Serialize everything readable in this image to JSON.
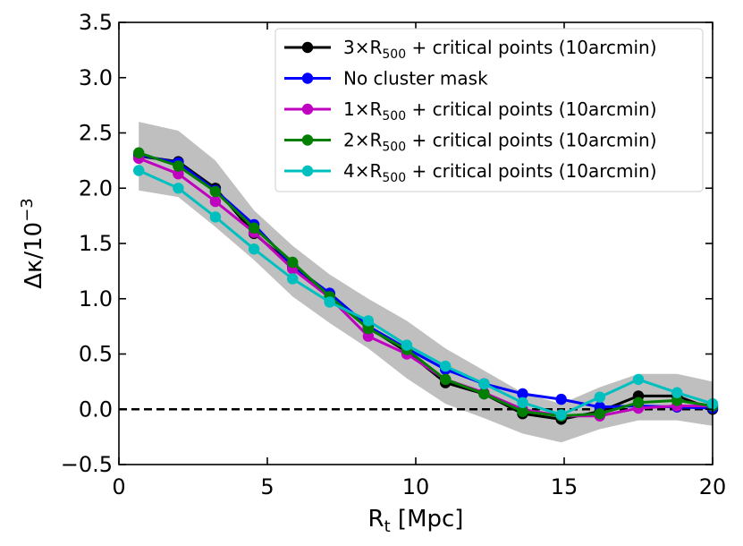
{
  "chart_data": {
    "type": "line",
    "title": "",
    "xlabel": "R",
    "xlabel_sub": "t",
    "xlabel_unit": " [Mpc]",
    "ylabel": "Δκ/10",
    "ylabel_sup": "−3",
    "xlim": [
      0,
      20
    ],
    "ylim": [
      -0.5,
      3.5
    ],
    "xticks": [
      0,
      5,
      10,
      15,
      20
    ],
    "xtick_labels": [
      "0",
      "5",
      "10",
      "15",
      "20"
    ],
    "yticks": [
      -0.5,
      0.0,
      0.5,
      1.0,
      1.5,
      2.0,
      2.5,
      3.0,
      3.5
    ],
    "ytick_labels": [
      "−0.5",
      "0.0",
      "0.5",
      "1.0",
      "1.5",
      "2.0",
      "2.5",
      "3.0",
      "3.5"
    ],
    "x": [
      0.67,
      2.0,
      3.25,
      4.55,
      5.85,
      7.1,
      8.4,
      9.7,
      11.0,
      12.3,
      13.6,
      14.9,
      16.2,
      17.5,
      18.8,
      20.0
    ],
    "reference_line": {
      "y": 0.0,
      "style": "dashed",
      "color": "#000000"
    },
    "band": {
      "color": "#bfbfbf",
      "upper": [
        2.6,
        2.52,
        2.25,
        1.8,
        1.48,
        1.22,
        1.0,
        0.8,
        0.55,
        0.35,
        0.15,
        0.05,
        0.2,
        0.32,
        0.32,
        0.25
      ],
      "lower": [
        1.98,
        1.92,
        1.65,
        1.35,
        1.02,
        0.78,
        0.55,
        0.28,
        0.05,
        -0.08,
        -0.22,
        -0.3,
        -0.18,
        -0.1,
        -0.1,
        -0.15
      ]
    },
    "series": [
      {
        "name": "3×R500 + critical points (10arcmin)",
        "color": "#000000",
        "values": [
          2.29,
          2.24,
          2.0,
          1.59,
          1.3,
          1.04,
          0.74,
          0.52,
          0.24,
          0.14,
          -0.04,
          -0.09,
          -0.02,
          0.12,
          0.12,
          0.0
        ]
      },
      {
        "name": "No cluster mask",
        "color": "#0000ff",
        "values": [
          2.3,
          2.23,
          1.98,
          1.67,
          1.3,
          1.05,
          0.75,
          0.55,
          0.36,
          0.23,
          0.14,
          0.09,
          0.02,
          0.03,
          0.02,
          0.01
        ]
      },
      {
        "name": "1×R500 + critical points (10arcmin)",
        "color": "#bf00bf",
        "values": [
          2.27,
          2.13,
          1.88,
          1.6,
          1.27,
          1.01,
          0.66,
          0.5,
          0.27,
          0.15,
          0.0,
          -0.06,
          -0.06,
          0.01,
          0.03,
          0.03
        ]
      },
      {
        "name": "2×R500 + critical points (10arcmin)",
        "color": "#007f00",
        "values": [
          2.32,
          2.2,
          1.97,
          1.64,
          1.33,
          1.02,
          0.73,
          0.54,
          0.27,
          0.14,
          -0.02,
          -0.06,
          -0.04,
          0.06,
          0.08,
          0.03
        ]
      },
      {
        "name": "4×R500 + critical points (10arcmin)",
        "color": "#00bfbf",
        "values": [
          2.16,
          2.0,
          1.74,
          1.45,
          1.18,
          0.97,
          0.8,
          0.58,
          0.39,
          0.23,
          0.06,
          -0.05,
          0.11,
          0.27,
          0.15,
          0.05
        ]
      }
    ],
    "legend": {
      "position": "upper-right",
      "entries": [
        {
          "prefix": "3×R",
          "sub": "500",
          "suffix": " + critical points (10arcmin)",
          "color": "#000000"
        },
        {
          "prefix": "No cluster mask",
          "sub": "",
          "suffix": "",
          "color": "#0000ff"
        },
        {
          "prefix": "1×R",
          "sub": "500",
          "suffix": " + critical points (10arcmin)",
          "color": "#bf00bf"
        },
        {
          "prefix": "2×R",
          "sub": "500",
          "suffix": " + critical points (10arcmin)",
          "color": "#007f00"
        },
        {
          "prefix": "4×R",
          "sub": "500",
          "suffix": " + critical points (10arcmin)",
          "color": "#00bfbf"
        }
      ]
    }
  }
}
